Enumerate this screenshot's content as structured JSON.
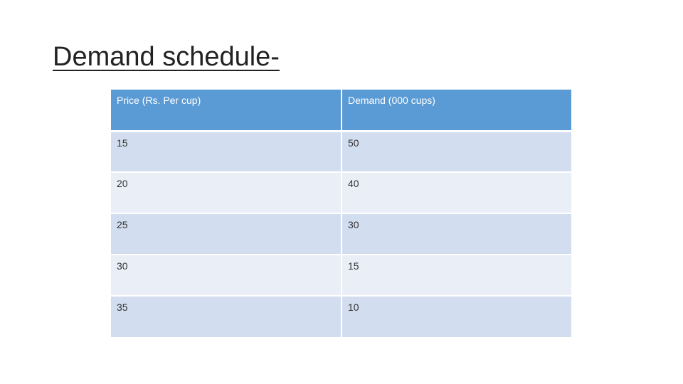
{
  "slide": {
    "title": "Demand schedule-"
  },
  "table": {
    "headers": [
      "Price (Rs. Per cup)",
      "Demand (000 cups)"
    ],
    "rows": [
      [
        "15",
        "50"
      ],
      [
        "20",
        "40"
      ],
      [
        "25",
        "30"
      ],
      [
        "30",
        "15"
      ],
      [
        "35",
        "10"
      ]
    ]
  },
  "colors": {
    "header_bg": "#5b9bd5",
    "row_band_dark": "#d2deef",
    "row_band_light": "#eaeff7"
  }
}
